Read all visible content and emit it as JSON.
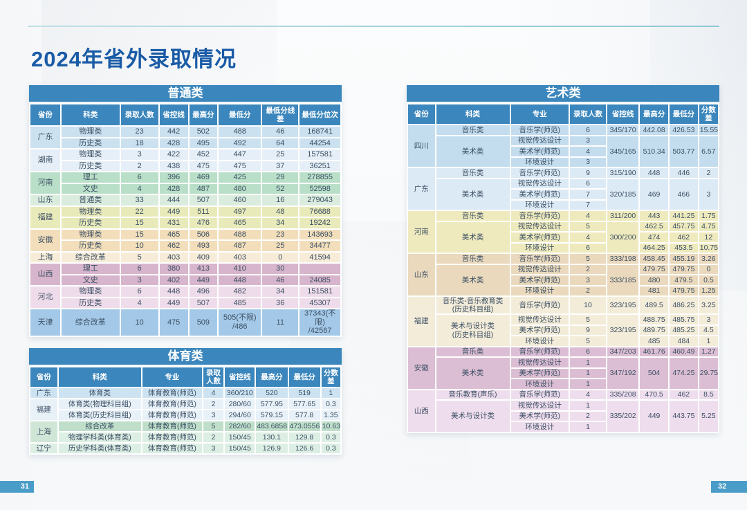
{
  "page": {
    "title": "2024年省外录取情况",
    "page_number_left": "31",
    "page_number_right": "32"
  },
  "palette": {
    "header_blue": "#3b86bc",
    "title_text": "#1a5ba6",
    "cell_text": "#3c4f63",
    "top_line_teal": "#8fc6d6",
    "page_badge_blue": "#4a9dc8"
  },
  "tables": [
    {
      "id": "general",
      "title": "普通类",
      "columns": [
        "省份",
        "科类",
        "录取人数",
        "省控线",
        "最高分",
        "最低分",
        "最低分线差",
        "最低分位次"
      ],
      "groups": [
        {
          "province": "广东",
          "color": "#cbe1f0",
          "rows": [
            [
              "物理类",
              "23",
              "442",
              "502",
              "488",
              "46",
              "168741"
            ],
            [
              "历史类",
              "18",
              "428",
              "495",
              "492",
              "64",
              "44254"
            ]
          ]
        },
        {
          "province": "湖南",
          "color": "#e6eff7",
          "rows": [
            [
              "物理类",
              "3",
              "422",
              "452",
              "447",
              "25",
              "157581"
            ],
            [
              "历史类",
              "2",
              "438",
              "475",
              "475",
              "37",
              "36251"
            ]
          ]
        },
        {
          "province": "河南",
          "color": "#b9dfc8",
          "rows": [
            [
              "理工",
              "6",
              "396",
              "469",
              "425",
              "29",
              "278855"
            ],
            [
              "文史",
              "4",
              "428",
              "487",
              "480",
              "52",
              "52598"
            ]
          ]
        },
        {
          "province": "山东",
          "color": "#d9ecde",
          "rows": [
            [
              "普通类",
              "33",
              "444",
              "507",
              "460",
              "16",
              "279043"
            ]
          ]
        },
        {
          "province": "福建",
          "color": "#e9eaba",
          "rows": [
            [
              "物理类",
              "22",
              "449",
              "511",
              "497",
              "48",
              "76688"
            ],
            [
              "历史类",
              "15",
              "431",
              "476",
              "465",
              "34",
              "19242"
            ]
          ]
        },
        {
          "province": "安徽",
          "color": "#f2deba",
          "rows": [
            [
              "物理类",
              "15",
              "465",
              "506",
              "488",
              "23",
              "143693"
            ],
            [
              "历史类",
              "10",
              "462",
              "493",
              "487",
              "25",
              "34477"
            ]
          ]
        },
        {
          "province": "上海",
          "color": "#f6ecd8",
          "rows": [
            [
              "综合改革",
              "5",
              "403",
              "409",
              "403",
              "0",
              "41594"
            ]
          ]
        },
        {
          "province": "山西",
          "color": "#d7b5cc",
          "rows": [
            [
              "理工",
              "6",
              "380",
              "413",
              "410",
              "30",
              ""
            ],
            [
              "文史",
              "3",
              "402",
              "449",
              "448",
              "46",
              "24085"
            ]
          ]
        },
        {
          "province": "河北",
          "color": "#efdcea",
          "rows": [
            [
              "物理类",
              "6",
              "448",
              "496",
              "482",
              "34",
              "151581"
            ],
            [
              "历史类",
              "4",
              "449",
              "507",
              "485",
              "36",
              "45307"
            ]
          ]
        },
        {
          "province": "天津",
          "color": "#a4c9e8",
          "rows": [
            [
              "综合改革",
              "10",
              "475",
              "509",
              "505(不限)\n/486",
              "11",
              "37343(不限)\n/42567"
            ]
          ]
        }
      ]
    },
    {
      "id": "sports",
      "title": "体育类",
      "columns": [
        "省份",
        "科类",
        "专业",
        "录取人数",
        "省控线",
        "最高分",
        "最低分",
        "分数差"
      ],
      "groups": [
        {
          "province": "广东",
          "color": "#cde3f1",
          "rows": [
            [
              "体育类",
              "体育教育(师范)",
              "4",
              "360/210",
              "520",
              "519",
              "1"
            ]
          ]
        },
        {
          "province": "福建",
          "color": "#e8f1f8",
          "rows": [
            [
              "体育类(物理科目组)",
              "体育教育(师范)",
              "2",
              "280/60",
              "577.95",
              "577.65",
              "0.3"
            ],
            [
              "体育类(历史科目组)",
              "体育教育(师范)",
              "3",
              "294/60",
              "579.15",
              "577.8",
              "1.35"
            ]
          ]
        },
        {
          "province": "上海",
          "pcolor": "#cfe6d7",
          "color": [
            "#c0dfcb",
            "#ddeee4"
          ],
          "rows": [
            [
              "综合改革",
              "体育教育(师范)",
              "5",
              "282/60",
              "483.6858",
              "473.0556",
              "10.63"
            ],
            [
              "物理学科类(体育类)",
              "体育教育(师范)",
              "2",
              "150/45",
              "130.1",
              "129.8",
              "0.3"
            ]
          ]
        },
        {
          "province": "辽宁",
          "color": "#ddeee4",
          "rows": [
            [
              "历史学科类(体育类)",
              "体育教育(师范)",
              "3",
              "150/45",
              "126.9",
              "126.6",
              "0.3"
            ]
          ]
        }
      ]
    },
    {
      "id": "arts",
      "title": "艺术类",
      "columns": [
        "省份",
        "科类",
        "专业",
        "录取人数",
        "省控线",
        "最高分",
        "最低分",
        "分数差"
      ],
      "groups": [
        {
          "province": "四川",
          "color": "#c3dcee",
          "rows": [
            [
              "音乐类",
              "音乐学(师范)",
              "6",
              "345/170",
              "442.08",
              "426.53",
              "15.55"
            ],
            [
              {
                "t": "美术类",
                "rs": 3
              },
              "视觉传达设计",
              "3",
              {
                "t": "345/165",
                "rs": 3
              },
              {
                "t": "510.34",
                "rs": 3
              },
              {
                "t": "503.77",
                "rs": 3
              },
              {
                "t": "6.57",
                "rs": 3
              }
            ],
            [
              "美术学(师范)",
              "4"
            ],
            [
              "环境设计",
              "3"
            ]
          ]
        },
        {
          "province": "广东",
          "color": "#dceaf5",
          "rows": [
            [
              "音乐类",
              "音乐学(师范)",
              "9",
              "315/190",
              "448",
              "446",
              "2"
            ],
            [
              {
                "t": "美术类",
                "rs": 3
              },
              "视觉传达设计",
              "6",
              {
                "t": "320/185",
                "rs": 3
              },
              {
                "t": "469",
                "rs": 3
              },
              {
                "t": "466",
                "rs": 3
              },
              {
                "t": "3",
                "rs": 3
              }
            ],
            [
              "美术学(师范)",
              "7"
            ],
            [
              "环境设计",
              "7"
            ]
          ]
        },
        {
          "province": "河南",
          "color": "#eeeabd",
          "rows": [
            [
              "音乐类",
              "音乐学(师范)",
              "4",
              "311/200",
              "443",
              "441.25",
              "1.75"
            ],
            [
              {
                "t": "美术类",
                "rs": 3
              },
              "视觉传达设计",
              "5",
              {
                "t": "300/200",
                "rs": 3
              },
              "462.5",
              "457.75",
              "4.75"
            ],
            [
              "美术学(师范)",
              "4",
              "474",
              "462",
              "12"
            ],
            [
              "环境设计",
              "6",
              "464.25",
              "453.5",
              "10.75"
            ]
          ]
        },
        {
          "province": "山东",
          "color": "#ead9bd",
          "rows": [
            [
              "音乐类",
              "音乐学(师范)",
              "5",
              "333/198",
              "458.45",
              "455.19",
              "3.26"
            ],
            [
              {
                "t": "美术类",
                "rs": 3
              },
              "视觉传达设计",
              "2",
              {
                "t": "333/185",
                "rs": 3
              },
              "479.75",
              "479.75",
              "0"
            ],
            [
              "美术学(师范)",
              "3",
              "480",
              "479.5",
              "0.5"
            ],
            [
              "环境设计",
              "2",
              "481",
              "479.75",
              "1.25"
            ]
          ]
        },
        {
          "province": "福建",
          "color": "#f3ecd9",
          "rows": [
            [
              "音乐类-音乐教育类\n(历史科目组)",
              "音乐学(师范)",
              "10",
              "323/195",
              "489.5",
              "486.25",
              "3.25"
            ],
            [
              {
                "t": "美术与设计类\n(历史科目组)",
                "rs": 3
              },
              "视觉传达设计",
              "5",
              {
                "t": "323/195",
                "rs": 3
              },
              "488.75",
              "485.75",
              "3"
            ],
            [
              "美术学(师范)",
              "9",
              "489.75",
              "485.25",
              "4.5"
            ],
            [
              "环境设计",
              "5",
              "485",
              "484",
              "1"
            ]
          ]
        },
        {
          "province": "安徽",
          "color": "#dcbed4",
          "rows": [
            [
              "音乐类",
              "音乐学(师范)",
              "6",
              "347/203",
              "461.76",
              "460.49",
              "1.27"
            ],
            [
              {
                "t": "美术类",
                "rs": 3
              },
              "视觉传达设计",
              "1",
              {
                "t": "347/192",
                "rs": 3
              },
              {
                "t": "504",
                "rs": 3
              },
              {
                "t": "474.25",
                "rs": 3
              },
              {
                "t": "29.75",
                "rs": 3
              }
            ],
            [
              "美术学(师范)",
              "1"
            ],
            [
              "环境设计",
              "1"
            ]
          ]
        },
        {
          "province": "山西",
          "color": "#eedded",
          "rows": [
            [
              "音乐教育(声乐)",
              "音乐学(师范)",
              "4",
              "335/208",
              "470.5",
              "462",
              "8.5"
            ],
            [
              {
                "t": "美术与设计类",
                "rs": 3
              },
              "视觉传达设计",
              "1",
              {
                "t": "335/202",
                "rs": 3
              },
              {
                "t": "449",
                "rs": 3
              },
              {
                "t": "443.75",
                "rs": 3
              },
              {
                "t": "5.25",
                "rs": 3
              }
            ],
            [
              "美术学(师范)",
              "2"
            ],
            [
              "环境设计",
              "1"
            ]
          ]
        }
      ]
    }
  ]
}
